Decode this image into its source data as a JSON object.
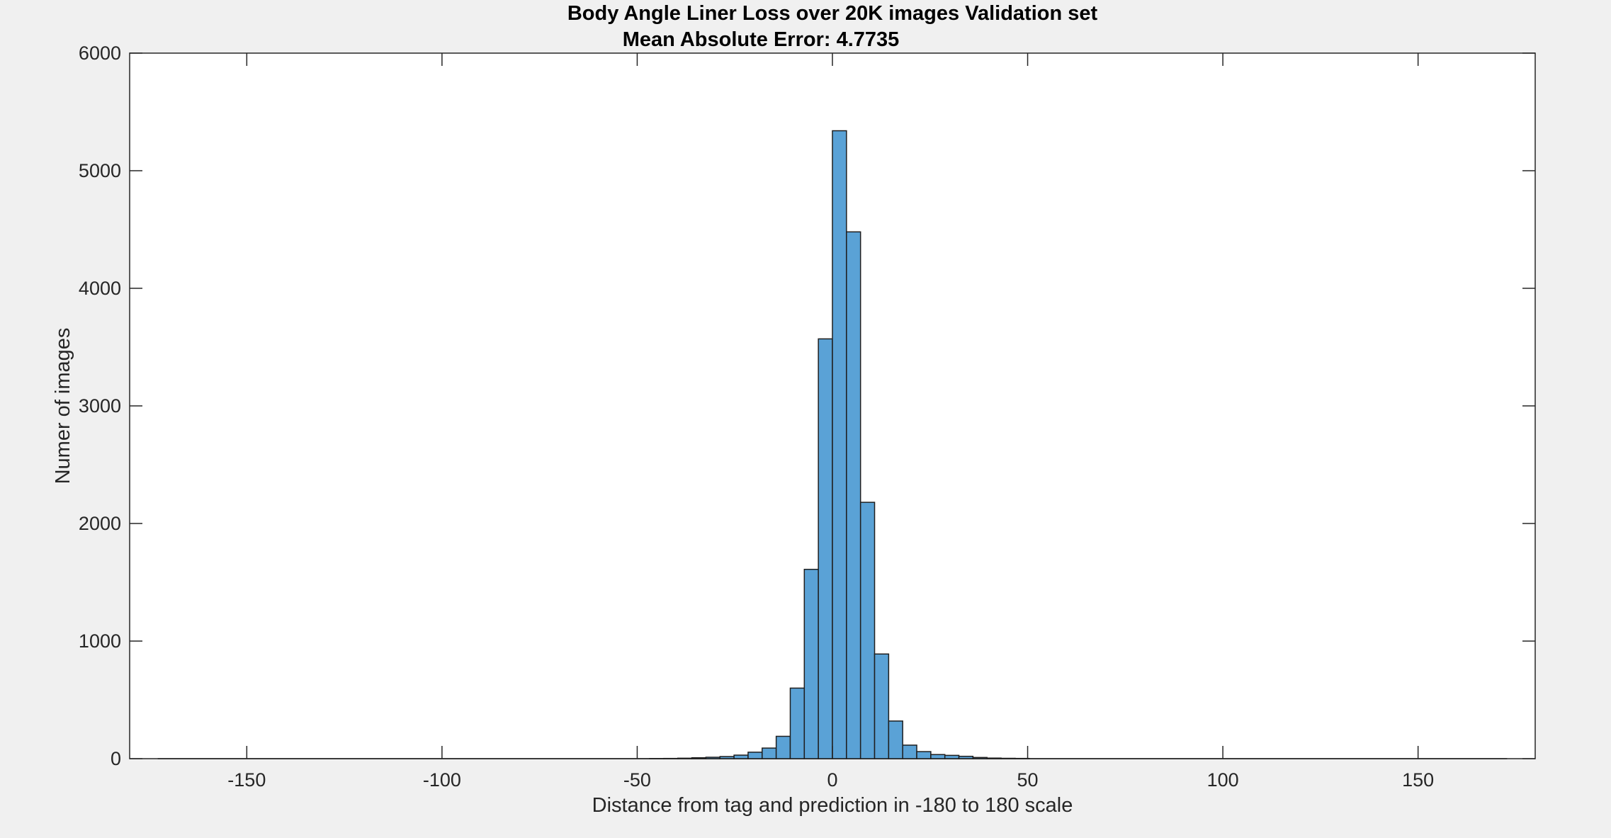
{
  "chart_data": {
    "type": "bar",
    "title": "Body Angle Liner Loss over 20K images Validation set",
    "subtitle": "Mean Absolute Error: 4.7735",
    "xlabel": "Distance from tag and prediction in -180 to 180 scale",
    "ylabel": "Numer of images",
    "xlim": [
      -180,
      180
    ],
    "ylim": [
      0,
      6000
    ],
    "xticks": [
      -150,
      -100,
      -50,
      0,
      50,
      100,
      150
    ],
    "yticks": [
      0,
      1000,
      2000,
      3000,
      4000,
      5000,
      6000
    ],
    "grid": false,
    "bin_width": 3.6,
    "bins": [
      {
        "x0": -46.8,
        "value": 1
      },
      {
        "x0": -43.2,
        "value": 2
      },
      {
        "x0": -39.6,
        "value": 4
      },
      {
        "x0": -36.0,
        "value": 8
      },
      {
        "x0": -32.4,
        "value": 12
      },
      {
        "x0": -28.8,
        "value": 18
      },
      {
        "x0": -25.2,
        "value": 30
      },
      {
        "x0": -21.6,
        "value": 55
      },
      {
        "x0": -18.0,
        "value": 90
      },
      {
        "x0": -14.4,
        "value": 190
      },
      {
        "x0": -10.8,
        "value": 600
      },
      {
        "x0": -7.2,
        "value": 1610
      },
      {
        "x0": -3.6,
        "value": 3570
      },
      {
        "x0": 0.0,
        "value": 5340
      },
      {
        "x0": 3.6,
        "value": 4480
      },
      {
        "x0": 7.2,
        "value": 2180
      },
      {
        "x0": 10.8,
        "value": 890
      },
      {
        "x0": 14.4,
        "value": 320
      },
      {
        "x0": 18.0,
        "value": 115
      },
      {
        "x0": 21.6,
        "value": 60
      },
      {
        "x0": 25.2,
        "value": 35
      },
      {
        "x0": 28.8,
        "value": 28
      },
      {
        "x0": 32.4,
        "value": 20
      },
      {
        "x0": 36.0,
        "value": 10
      },
      {
        "x0": 39.6,
        "value": 5
      },
      {
        "x0": 43.2,
        "value": 3
      },
      {
        "x0": 46.8,
        "value": 2
      }
    ],
    "colors": {
      "bar_fill": "#5aa2d6",
      "bar_stroke": "#1f1f1f",
      "axes_bg": "#ffffff",
      "figure_bg": "#f0f0f0"
    }
  }
}
